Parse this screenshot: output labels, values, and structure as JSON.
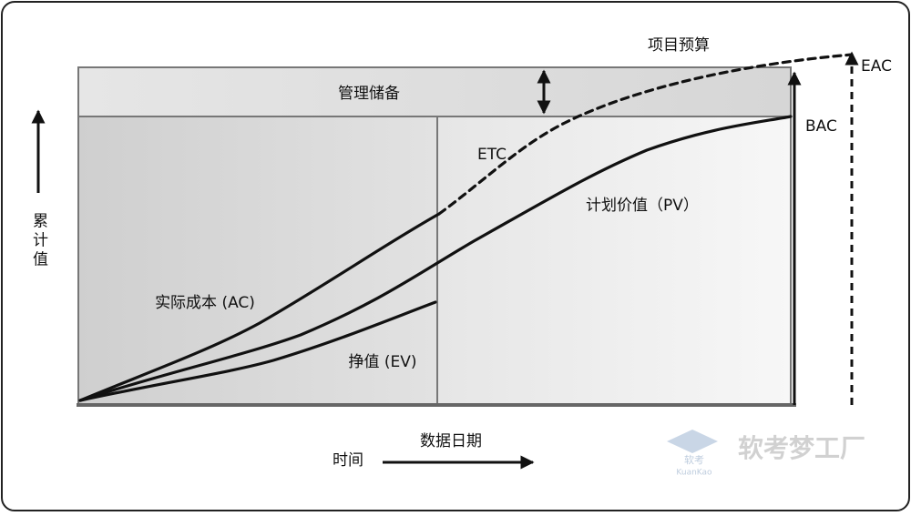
{
  "diagram": {
    "budget_label": "项目预算",
    "eac_label": "EAC",
    "bac_label": "BAC",
    "reserve_label": "管理储备",
    "etc_label": "ETC",
    "pv_label": "计划价值（PV）",
    "ac_label": "实际成本 (AC)",
    "ev_label": "挣值 (EV)",
    "y_axis_label": "累计值",
    "data_date_label": "数据日期",
    "x_axis_label": "时间"
  },
  "watermark": {
    "title": "软考梦工厂",
    "small": "软考",
    "latin": "KuanKao"
  }
}
